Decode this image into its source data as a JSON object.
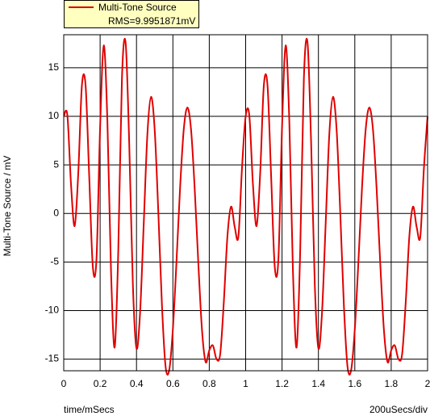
{
  "chart_data": {
    "type": "line",
    "y_label": "Multi-Tone Source / mV",
    "x_label": "time/mSecs",
    "annotation": "200uSecs/div",
    "legend_note": "RMS=9.9951871mV",
    "grid": true,
    "xlim": [
      0,
      2
    ],
    "ylim": [
      -16.2,
      18.4
    ],
    "xticks": [
      0,
      0.2,
      0.4,
      0.6,
      0.8,
      1,
      1.2,
      1.4,
      1.6,
      1.8,
      2
    ],
    "yticks": [
      -15,
      -10,
      -5,
      0,
      5,
      10,
      15
    ],
    "x": [
      0,
      0.02,
      0.04,
      0.06,
      0.08,
      0.1,
      0.12,
      0.14,
      0.16,
      0.18,
      0.2,
      0.22,
      0.24,
      0.26,
      0.28,
      0.3,
      0.32,
      0.34,
      0.36,
      0.38,
      0.4,
      0.42,
      0.44,
      0.46,
      0.48,
      0.5,
      0.52,
      0.54,
      0.56,
      0.58,
      0.6,
      0.62,
      0.64,
      0.66,
      0.68,
      0.7,
      0.72,
      0.74,
      0.76,
      0.78,
      0.8,
      0.82,
      0.84,
      0.86,
      0.88,
      0.9,
      0.92,
      0.94,
      0.96,
      0.98,
      1,
      1.02,
      1.04,
      1.06,
      1.08,
      1.1,
      1.12,
      1.14,
      1.16,
      1.18,
      1.2,
      1.22,
      1.24,
      1.26,
      1.28,
      1.3,
      1.32,
      1.34,
      1.36,
      1.38,
      1.4,
      1.42,
      1.44,
      1.46,
      1.48,
      1.5,
      1.52,
      1.54,
      1.56,
      1.58,
      1.6,
      1.62,
      1.64,
      1.66,
      1.68,
      1.7,
      1.72,
      1.74,
      1.76,
      1.78,
      1.8,
      1.82,
      1.84,
      1.86,
      1.88,
      1.9,
      1.92,
      1.94,
      1.96,
      1.98,
      2
    ],
    "series": [
      {
        "name": "Multi-Tone Source",
        "color": "#e00000",
        "values": [
          10,
          10.1,
          3.0,
          -1.3,
          4.2,
          13.2,
          13.2,
          3.85,
          -5.5,
          -4.7,
          8.9,
          17.3,
          9.5,
          -6.0,
          -13.8,
          -3.7,
          13.9,
          17.6,
          7.2,
          -7.3,
          -13.9,
          -10.1,
          -0.95,
          8.2,
          12,
          8.6,
          0.1,
          -9.5,
          -15.8,
          -16.1,
          -11.9,
          -4.9,
          2.8,
          8.7,
          10.9,
          8.6,
          2.5,
          -5.2,
          -12.0,
          -15.3,
          -14.1,
          -13.6,
          -15.0,
          -14.5,
          -9.1,
          -2.3,
          0.7,
          -1.4,
          -2.4,
          4.7,
          10,
          10.1,
          3.0,
          -1.3,
          4.2,
          13.2,
          13.2,
          3.85,
          -5.5,
          -4.7,
          8.9,
          17.3,
          9.5,
          -6.0,
          -13.8,
          -3.7,
          13.9,
          17.6,
          7.2,
          -7.3,
          -13.9,
          -10.1,
          -0.95,
          8.2,
          12,
          8.6,
          0.1,
          -9.5,
          -15.8,
          -16.1,
          -11.9,
          -4.9,
          2.8,
          8.7,
          10.9,
          8.6,
          2.5,
          -5.2,
          -12.0,
          -15.3,
          -14.1,
          -13.6,
          -15.0,
          -14.5,
          -9.1,
          -2.3,
          0.7,
          -1.4,
          -2.4,
          4.7,
          10
        ]
      }
    ]
  }
}
